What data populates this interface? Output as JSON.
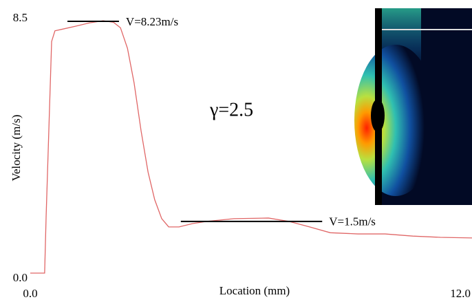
{
  "chart_data": {
    "type": "line",
    "x_label": "Location (mm)",
    "y_label": "Velocity (m/s)",
    "xlim": [
      0,
      12
    ],
    "ylim": [
      0,
      8.5
    ],
    "xticks": [
      {
        "value": 0,
        "label": "0.0"
      },
      {
        "value": 12,
        "label": "12.0"
      }
    ],
    "yticks": [
      {
        "value": 0,
        "label": "0.0"
      },
      8.5
    ],
    "grid": false,
    "series": [
      {
        "color": "#e06666",
        "x": [
          0,
          0.39,
          0.43,
          0.49,
          0.58,
          0.67,
          0.86,
          1.23,
          1.61,
          1.98,
          2.26,
          2.45,
          2.64,
          2.82,
          3.01,
          3.2,
          3.38,
          3.57,
          3.76,
          4.04,
          4.41,
          4.79,
          5.53,
          6.47,
          7.03,
          7.59,
          8.15,
          8.9,
          9.64,
          10.39,
          11.14,
          12
        ],
        "values": [
          0.18,
          0.18,
          2.0,
          4.3,
          7.75,
          8.1,
          8.15,
          8.25,
          8.36,
          8.43,
          8.38,
          8.2,
          7.53,
          6.4,
          4.83,
          3.48,
          2.58,
          1.96,
          1.69,
          1.69,
          1.8,
          1.87,
          1.96,
          1.98,
          1.87,
          1.69,
          1.5,
          1.46,
          1.46,
          1.39,
          1.35,
          1.33
        ]
      }
    ],
    "annotations": [
      {
        "text": "V=8.23m/s",
        "x": [
          1.01,
          2.41
        ],
        "y": 8.41,
        "color": "#000000"
      },
      {
        "text": "V=1.5m/s",
        "x": [
          4.09,
          7.93
        ],
        "y": 1.87,
        "color": "#000000"
      }
    ],
    "note": "γ=2.5"
  }
}
